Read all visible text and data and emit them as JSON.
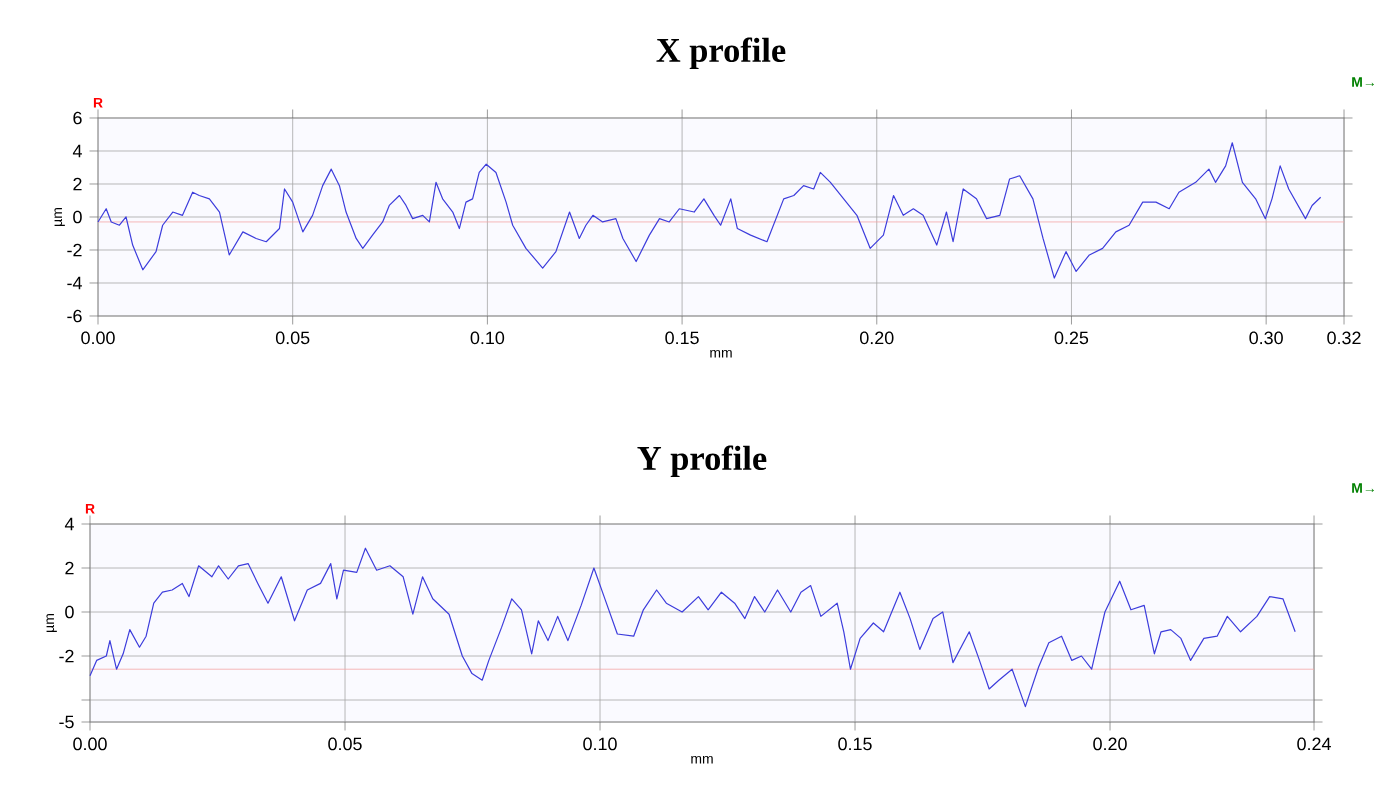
{
  "chart_data": [
    {
      "type": "line",
      "title": "X profile",
      "xlabel": "mm",
      "ylabel": "µm",
      "annotations": [
        "R",
        "M→"
      ],
      "xlim": [
        0,
        0.32
      ],
      "ylim": [
        -6,
        6
      ],
      "xticks": [
        {
          "value": 0,
          "label": "0.00"
        },
        {
          "value": 0.05,
          "label": "0.05"
        },
        {
          "value": 0.1,
          "label": "0.10"
        },
        {
          "value": 0.15,
          "label": "0.15"
        },
        {
          "value": 0.2,
          "label": "0.20"
        },
        {
          "value": 0.25,
          "label": "0.25"
        },
        {
          "value": 0.3,
          "label": "0.30"
        },
        {
          "value": 0.32,
          "label": "0.32"
        }
      ],
      "yticks": [
        -6,
        -4,
        -2,
        0,
        2,
        4,
        6
      ],
      "grid": true,
      "line_style": "solid",
      "marker": "none",
      "ref_lines": [
        {
          "axis": "y",
          "value": -0.3,
          "color": "#f4a6a6"
        }
      ],
      "series": [
        {
          "color": "#3c3cdc",
          "x": [
            0,
            0.0021,
            0.0034,
            0.0055,
            0.0072,
            0.0089,
            0.0115,
            0.0149,
            0.0166,
            0.0192,
            0.0217,
            0.0243,
            0.026,
            0.0286,
            0.0312,
            0.0337,
            0.0372,
            0.0406,
            0.0432,
            0.0466,
            0.0479,
            0.05,
            0.0526,
            0.0551,
            0.0577,
            0.0599,
            0.062,
            0.0637,
            0.0663,
            0.068,
            0.0705,
            0.0731,
            0.0748,
            0.0774,
            0.0791,
            0.0808,
            0.0834,
            0.0851,
            0.0868,
            0.0885,
            0.0911,
            0.0928,
            0.0945,
            0.0962,
            0.0979,
            0.0997,
            0.1022,
            0.1048,
            0.1065,
            0.1099,
            0.1142,
            0.1176,
            0.1211,
            0.1236,
            0.1253,
            0.1271,
            0.1296,
            0.133,
            0.1348,
            0.1382,
            0.1416,
            0.1442,
            0.1467,
            0.1493,
            0.1531,
            0.1556,
            0.1582,
            0.1599,
            0.1625,
            0.1642,
            0.1676,
            0.1718,
            0.1761,
            0.1787,
            0.1812,
            0.1838,
            0.1855,
            0.1881,
            0.1915,
            0.1949,
            0.1983,
            0.2017,
            0.2043,
            0.2068,
            0.2094,
            0.2119,
            0.2154,
            0.2179,
            0.2196,
            0.2222,
            0.2256,
            0.2282,
            0.2316,
            0.2341,
            0.2367,
            0.2401,
            0.2427,
            0.2456,
            0.2486,
            0.2512,
            0.2546,
            0.258,
            0.2614,
            0.2648,
            0.2683,
            0.2717,
            0.2751,
            0.2776,
            0.2819,
            0.2853,
            0.287,
            0.2896,
            0.2913,
            0.2939,
            0.2973,
            0.2998,
            0.3015,
            0.3036,
            0.3058,
            0.3101,
            0.3118,
            0.314
          ],
          "values": [
            -0.3,
            0.5,
            -0.3,
            -0.5,
            0.0,
            -1.7,
            -3.2,
            -2.1,
            -0.5,
            0.3,
            0.1,
            1.5,
            1.3,
            1.1,
            0.3,
            -2.3,
            -0.9,
            -1.3,
            -1.5,
            -0.7,
            1.7,
            0.9,
            -0.9,
            0.1,
            1.9,
            2.9,
            1.9,
            0.3,
            -1.3,
            -1.9,
            -1.1,
            -0.3,
            0.7,
            1.3,
            0.7,
            -0.1,
            0.1,
            -0.3,
            2.1,
            1.1,
            0.3,
            -0.7,
            0.9,
            1.1,
            2.7,
            3.2,
            2.7,
            0.9,
            -0.5,
            -1.9,
            -3.1,
            -2.1,
            0.3,
            -1.3,
            -0.5,
            0.1,
            -0.3,
            -0.1,
            -1.3,
            -2.7,
            -1.1,
            -0.1,
            -0.3,
            0.5,
            0.3,
            1.1,
            0.1,
            -0.5,
            1.1,
            -0.7,
            -1.1,
            -1.5,
            1.1,
            1.3,
            1.9,
            1.7,
            2.7,
            2.1,
            1.1,
            0.1,
            -1.9,
            -1.1,
            1.3,
            0.1,
            0.5,
            0.1,
            -1.7,
            0.3,
            -1.5,
            1.7,
            1.1,
            -0.1,
            0.1,
            2.3,
            2.5,
            1.1,
            -1.3,
            -3.7,
            -2.1,
            -3.3,
            -2.3,
            -1.9,
            -0.9,
            -0.5,
            0.9,
            0.9,
            0.5,
            1.5,
            2.1,
            2.9,
            2.1,
            3.1,
            4.5,
            2.1,
            1.1,
            -0.1,
            1.1,
            3.1,
            1.7,
            -0.1,
            0.7,
            1.2
          ]
        }
      ]
    },
    {
      "type": "line",
      "title": "Y profile",
      "xlabel": "mm",
      "ylabel": "µm",
      "annotations": [
        "R",
        "M→"
      ],
      "xlim": [
        0,
        0.24
      ],
      "ylim": [
        -5,
        4
      ],
      "xticks": [
        {
          "value": 0,
          "label": "0.00"
        },
        {
          "value": 0.05,
          "label": "0.05"
        },
        {
          "value": 0.1,
          "label": "0.10"
        },
        {
          "value": 0.15,
          "label": "0.15"
        },
        {
          "value": 0.2,
          "label": "0.20"
        },
        {
          "value": 0.24,
          "label": "0.24"
        }
      ],
      "yticks": [
        -5,
        {
          "value": -4,
          "label": null
        },
        -2,
        0,
        2,
        4
      ],
      "grid": true,
      "line_style": "solid",
      "marker": "none",
      "ref_lines": [
        {
          "axis": "y",
          "value": -2.6,
          "color": "#f4a6a6"
        }
      ],
      "series": [
        {
          "color": "#3c3cdc",
          "x": [
            0,
            0.0013,
            0.0032,
            0.0039,
            0.0052,
            0.0065,
            0.0078,
            0.0097,
            0.011,
            0.0125,
            0.0142,
            0.0161,
            0.0181,
            0.0194,
            0.0213,
            0.0239,
            0.0252,
            0.0271,
            0.0291,
            0.031,
            0.0329,
            0.0349,
            0.0375,
            0.0401,
            0.0426,
            0.0452,
            0.0472,
            0.0484,
            0.0497,
            0.0523,
            0.054,
            0.0562,
            0.0588,
            0.0614,
            0.0633,
            0.0652,
            0.0672,
            0.0704,
            0.073,
            0.0749,
            0.0769,
            0.0782,
            0.0807,
            0.0827,
            0.0846,
            0.0866,
            0.0879,
            0.0898,
            0.0917,
            0.0937,
            0.0963,
            0.0988,
            0.1008,
            0.1034,
            0.1066,
            0.1085,
            0.1111,
            0.113,
            0.1161,
            0.1193,
            0.1212,
            0.1238,
            0.1264,
            0.1284,
            0.1303,
            0.1323,
            0.1348,
            0.1374,
            0.1394,
            0.1413,
            0.1433,
            0.1465,
            0.1478,
            0.1491,
            0.151,
            0.1536,
            0.1556,
            0.1588,
            0.1608,
            0.1627,
            0.1653,
            0.1672,
            0.1692,
            0.1724,
            0.1744,
            0.1763,
            0.1782,
            0.1808,
            0.1834,
            0.186,
            0.188,
            0.1905,
            0.1925,
            0.1944,
            0.1964,
            0.199,
            0.2019,
            0.2041,
            0.2067,
            0.2087,
            0.21,
            0.2119,
            0.2139,
            0.2158,
            0.2184,
            0.221,
            0.223,
            0.2256,
            0.2288,
            0.2313,
            0.2339,
            0.2363
          ],
          "values": [
            -2.9,
            -2.2,
            -2.0,
            -1.3,
            -2.6,
            -1.9,
            -0.8,
            -1.6,
            -1.1,
            0.4,
            0.9,
            1.0,
            1.3,
            0.7,
            2.1,
            1.6,
            2.1,
            1.5,
            2.1,
            2.2,
            1.3,
            0.4,
            1.6,
            -0.4,
            1.0,
            1.3,
            2.2,
            0.6,
            1.9,
            1.8,
            2.9,
            1.9,
            2.1,
            1.6,
            -0.1,
            1.6,
            0.6,
            -0.1,
            -2.0,
            -2.8,
            -3.1,
            -2.2,
            -0.7,
            0.6,
            0.1,
            -1.9,
            -0.4,
            -1.3,
            -0.2,
            -1.3,
            0.3,
            2.0,
            0.7,
            -1.0,
            -1.1,
            0.1,
            1.0,
            0.4,
            0.0,
            0.7,
            0.1,
            0.9,
            0.4,
            -0.3,
            0.7,
            0.0,
            1.0,
            0.0,
            0.9,
            1.2,
            -0.2,
            0.4,
            -0.9,
            -2.6,
            -1.2,
            -0.5,
            -0.9,
            0.9,
            -0.3,
            -1.7,
            -0.3,
            0.0,
            -2.3,
            -0.9,
            -2.2,
            -3.5,
            -3.1,
            -2.6,
            -4.3,
            -2.5,
            -1.4,
            -1.1,
            -2.2,
            -2.0,
            -2.6,
            0.0,
            1.4,
            0.1,
            0.3,
            -1.9,
            -0.9,
            -0.8,
            -1.2,
            -2.2,
            -1.2,
            -1.1,
            -0.2,
            -0.9,
            -0.2,
            0.7,
            0.6,
            -0.9
          ]
        }
      ]
    }
  ]
}
